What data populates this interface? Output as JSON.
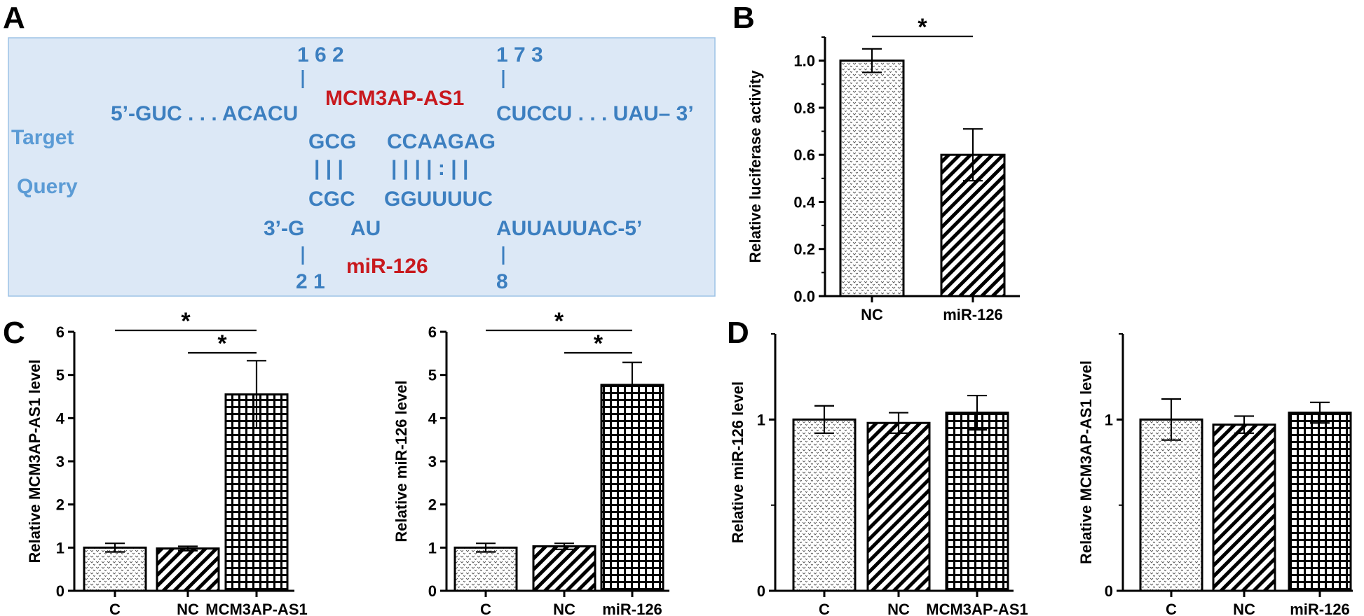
{
  "panel_labels": {
    "a": "A",
    "b": "B",
    "c": "C",
    "d": "D"
  },
  "colors": {
    "box_bg": "#dce8f6",
    "box_border": "#9dc3e6",
    "seq_blue": "#3c7fc0",
    "seq_side": "#5b9bd5",
    "seq_red": "#c8191e"
  },
  "panel_a": {
    "num_162": "1 6 2",
    "num_173": "1 7 3",
    "num_21": "2 1",
    "num_8": "8",
    "target_5": "5’-GUC . . . ACACU",
    "target_name": "MCM3AP-AS1",
    "target_3": "CUCCU . . . UAU– 3’",
    "label_target": "Target",
    "label_query": "Query",
    "pair_top_1": "GCG",
    "pair_top_2": "CCAAGAG",
    "bonds_1": "| | |",
    "bonds_2": "| | | | : | |",
    "pair_bot_1": "CGC",
    "pair_bot_2": "GGUUUUC",
    "query_3": "3’-G",
    "query_au": "AU",
    "query_5": "AUUAUUAC-5’",
    "query_name": "miR-126"
  },
  "chart_data": [
    {
      "id": "B",
      "type": "bar",
      "categories": [
        "NC",
        "miR-126"
      ],
      "values": [
        1.0,
        0.6
      ],
      "errors": [
        0.05,
        0.11
      ],
      "patterns": [
        "dots",
        "diag"
      ],
      "ylabel": "Relative luciferase activity",
      "ylim": [
        0,
        1.1
      ],
      "yticks": [
        "0.0",
        "0.2",
        "0.4",
        "0.6",
        "0.8",
        "1.0"
      ],
      "sig": [
        {
          "from": 0,
          "to": 1,
          "label": "*"
        }
      ]
    },
    {
      "id": "C1",
      "type": "bar",
      "categories": [
        "C",
        "NC",
        "MCM3AP-AS1"
      ],
      "values": [
        1.0,
        0.98,
        4.55
      ],
      "errors": [
        0.1,
        0.05,
        0.78
      ],
      "patterns": [
        "dots",
        "diag",
        "grid"
      ],
      "ylabel": "Relative MCM3AP-AS1 level",
      "ylim": [
        0,
        6
      ],
      "yticks": [
        "0",
        "1",
        "2",
        "3",
        "4",
        "5",
        "6"
      ],
      "sig": [
        {
          "from": 0,
          "to": 2,
          "label": "*"
        },
        {
          "from": 1,
          "to": 2,
          "label": "*"
        }
      ]
    },
    {
      "id": "C2",
      "type": "bar",
      "categories": [
        "C",
        "NC",
        "miR-126"
      ],
      "values": [
        1.0,
        1.03,
        4.77
      ],
      "errors": [
        0.1,
        0.07,
        0.52
      ],
      "patterns": [
        "dots",
        "diag",
        "grid"
      ],
      "ylabel": "Relative miR-126 level",
      "ylim": [
        0,
        6
      ],
      "yticks": [
        "0",
        "1",
        "2",
        "3",
        "4",
        "5",
        "6"
      ],
      "sig": [
        {
          "from": 0,
          "to": 2,
          "label": "*"
        },
        {
          "from": 1,
          "to": 2,
          "label": "*"
        }
      ]
    },
    {
      "id": "D1",
      "type": "bar",
      "categories": [
        "C",
        "NC",
        "MCM3AP-AS1"
      ],
      "values": [
        1.0,
        0.98,
        1.04
      ],
      "errors": [
        0.08,
        0.06,
        0.1
      ],
      "patterns": [
        "dots",
        "diag",
        "grid"
      ],
      "ylabel": "Relative miR-126 level",
      "ylim": [
        0,
        1.5
      ],
      "yticks": [
        "0",
        "1"
      ],
      "sig": []
    },
    {
      "id": "D2",
      "type": "bar",
      "categories": [
        "C",
        "NC",
        "miR-126"
      ],
      "values": [
        1.0,
        0.97,
        1.04
      ],
      "errors": [
        0.12,
        0.05,
        0.06
      ],
      "patterns": [
        "dots",
        "diag",
        "grid"
      ],
      "ylabel": "Relative MCM3AP-AS1 level",
      "ylim": [
        0,
        1.5
      ],
      "yticks": [
        "0",
        "1"
      ],
      "sig": []
    }
  ]
}
